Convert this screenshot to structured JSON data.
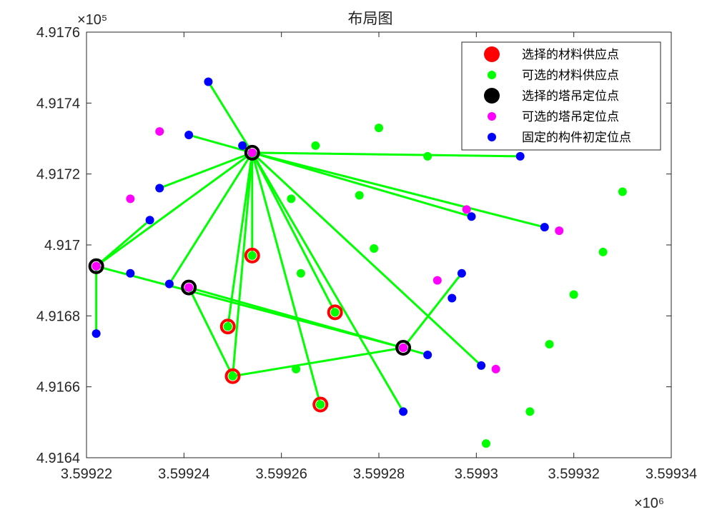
{
  "chart_data": {
    "type": "scatter",
    "title": "布局图",
    "xlabel": "",
    "ylabel": "",
    "x_multiplier": "×10⁶",
    "y_multiplier": "×10⁵",
    "xlim": [
      3.59922,
      3.59934
    ],
    "ylim": [
      4.9164,
      4.9176
    ],
    "x_ticks": [
      "3.59922",
      "3.59924",
      "3.59926",
      "3.59928",
      "3.5993",
      "3.59932",
      "3.59934"
    ],
    "y_ticks": [
      "4.9164",
      "4.9166",
      "4.9168",
      "4.917",
      "4.9172",
      "4.9174",
      "4.9176"
    ],
    "grid": false,
    "legend_position": "top-right",
    "series": [
      {
        "name": "选择的材料供应点",
        "color": "#ff0000",
        "marker": "large-circle",
        "points": [
          [
            3.599254,
            4.91697
          ],
          [
            3.599249,
            4.91677
          ],
          [
            3.599271,
            4.91681
          ],
          [
            3.59925,
            4.91663
          ],
          [
            3.599268,
            4.91655
          ]
        ]
      },
      {
        "name": "可选的材料供应点",
        "color": "#00ff00",
        "marker": "circle",
        "points": [
          [
            3.599254,
            4.91697
          ],
          [
            3.599249,
            4.91677
          ],
          [
            3.599271,
            4.91681
          ],
          [
            3.59925,
            4.91663
          ],
          [
            3.599268,
            4.91655
          ],
          [
            3.59928,
            4.91733
          ],
          [
            3.599267,
            4.91728
          ],
          [
            3.59929,
            4.91725
          ],
          [
            3.599262,
            4.91713
          ],
          [
            3.599276,
            4.91714
          ],
          [
            3.599279,
            4.91699
          ],
          [
            3.599264,
            4.91692
          ],
          [
            3.59933,
            4.91715
          ],
          [
            3.599326,
            4.91698
          ],
          [
            3.59932,
            4.91686
          ],
          [
            3.599315,
            4.91672
          ],
          [
            3.599263,
            4.91665
          ],
          [
            3.599311,
            4.91653
          ],
          [
            3.599302,
            4.91644
          ]
        ]
      },
      {
        "name": "选择的塔吊定位点",
        "color": "#000000",
        "marker": "large-circle",
        "points": [
          [
            3.599254,
            4.91726
          ],
          [
            3.599222,
            4.91694
          ],
          [
            3.599241,
            4.91688
          ],
          [
            3.599285,
            4.91671
          ]
        ]
      },
      {
        "name": "可选的塔吊定位点",
        "color": "#ff00ff",
        "marker": "circle",
        "points": [
          [
            3.599254,
            4.91726
          ],
          [
            3.599222,
            4.91694
          ],
          [
            3.599241,
            4.91688
          ],
          [
            3.599285,
            4.91671
          ],
          [
            3.599235,
            4.91732
          ],
          [
            3.599229,
            4.91713
          ],
          [
            3.599298,
            4.9171
          ],
          [
            3.599317,
            4.91704
          ],
          [
            3.599292,
            4.9169
          ],
          [
            3.599304,
            4.91665
          ]
        ]
      },
      {
        "name": "固定的构件初定位点",
        "color": "#0000ff",
        "marker": "circle",
        "points": [
          [
            3.599245,
            4.91746
          ],
          [
            3.599241,
            4.91731
          ],
          [
            3.599252,
            4.91728
          ],
          [
            3.599309,
            4.91725
          ],
          [
            3.599235,
            4.91716
          ],
          [
            3.599233,
            4.91707
          ],
          [
            3.599299,
            4.91708
          ],
          [
            3.599314,
            4.91705
          ],
          [
            3.599229,
            4.91692
          ],
          [
            3.599237,
            4.91689
          ],
          [
            3.599297,
            4.91692
          ],
          [
            3.599295,
            4.91685
          ],
          [
            3.599222,
            4.91675
          ],
          [
            3.59929,
            4.91669
          ],
          [
            3.599301,
            4.91666
          ],
          [
            3.599285,
            4.91653
          ]
        ]
      }
    ],
    "links": [
      {
        "color": "#00ff00",
        "segments": [
          [
            [
              3.599254,
              4.91726
            ],
            [
              3.599245,
              4.91746
            ]
          ],
          [
            [
              3.599254,
              4.91726
            ],
            [
              3.599241,
              4.91731
            ]
          ],
          [
            [
              3.599254,
              4.91726
            ],
            [
              3.599309,
              4.91725
            ]
          ],
          [
            [
              3.599254,
              4.91726
            ],
            [
              3.599235,
              4.91716
            ]
          ],
          [
            [
              3.599254,
              4.91726
            ],
            [
              3.599299,
              4.91708
            ]
          ],
          [
            [
              3.599254,
              4.91726
            ],
            [
              3.599314,
              4.91705
            ]
          ],
          [
            [
              3.599254,
              4.91726
            ],
            [
              3.599222,
              4.91694
            ]
          ],
          [
            [
              3.599254,
              4.91726
            ],
            [
              3.599237,
              4.91689
            ]
          ],
          [
            [
              3.599254,
              4.91726
            ],
            [
              3.599254,
              4.91697
            ]
          ],
          [
            [
              3.599254,
              4.91726
            ],
            [
              3.599249,
              4.91677
            ]
          ],
          [
            [
              3.599254,
              4.91726
            ],
            [
              3.59925,
              4.91663
            ]
          ],
          [
            [
              3.599254,
              4.91726
            ],
            [
              3.599268,
              4.91655
            ]
          ],
          [
            [
              3.599254,
              4.91726
            ],
            [
              3.599271,
              4.91681
            ]
          ],
          [
            [
              3.599254,
              4.91726
            ],
            [
              3.599285,
              4.91653
            ]
          ],
          [
            [
              3.599254,
              4.91726
            ],
            [
              3.599301,
              4.91666
            ]
          ],
          [
            [
              3.599222,
              4.91694
            ],
            [
              3.599233,
              4.91707
            ]
          ],
          [
            [
              3.599222,
              4.91694
            ],
            [
              3.599222,
              4.91675
            ]
          ],
          [
            [
              3.599222,
              4.91694
            ],
            [
              3.599285,
              4.91671
            ]
          ],
          [
            [
              3.599241,
              4.91688
            ],
            [
              3.599285,
              4.91671
            ]
          ],
          [
            [
              3.599241,
              4.91688
            ],
            [
              3.59925,
              4.91663
            ]
          ],
          [
            [
              3.59925,
              4.91663
            ],
            [
              3.599285,
              4.91671
            ]
          ],
          [
            [
              3.599285,
              4.91671
            ],
            [
              3.599297,
              4.91692
            ]
          ],
          [
            [
              3.599285,
              4.91671
            ],
            [
              3.59929,
              4.91669
            ]
          ]
        ]
      }
    ]
  }
}
